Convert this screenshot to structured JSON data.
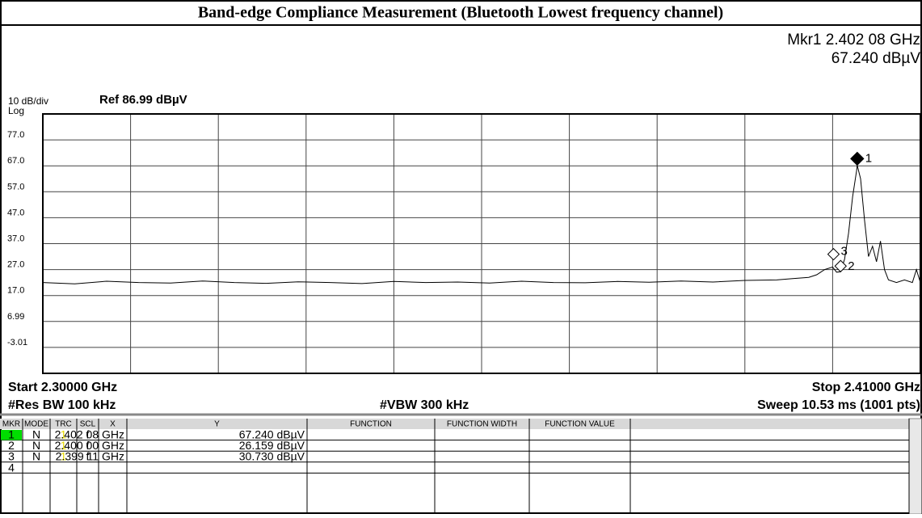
{
  "header": {
    "title": "Band-edge Compliance Measurement (Bluetooth Lowest frequency channel)"
  },
  "chart_data": {
    "type": "line",
    "marker_readout": [
      "Mkr1 2.402 08 GHz",
      "67.240 dBµV"
    ],
    "scale_label": "10 dB/div",
    "ref_label": "Ref 86.99 dBµV",
    "scale_type": "Log",
    "start_label": "Start 2.30000 GHz",
    "stop_label": "Stop 2.41000 GHz",
    "rbw_label": "#Res BW 100 kHz",
    "vbw_label": "#VBW 300 kHz",
    "sweep_label": "Sweep  10.53 ms (1001 pts)",
    "xlim": [
      2.3,
      2.41
    ],
    "ylim": [
      -13.01,
      86.99
    ],
    "yticks": [
      {
        "value": 76.99,
        "label": "77.0"
      },
      {
        "value": 66.99,
        "label": "67.0"
      },
      {
        "value": 56.99,
        "label": "57.0"
      },
      {
        "value": 46.99,
        "label": "47.0"
      },
      {
        "value": 36.99,
        "label": "37.0"
      },
      {
        "value": 26.99,
        "label": "27.0"
      },
      {
        "value": 16.99,
        "label": "17.0"
      },
      6.99,
      -3.01
    ],
    "grid": true,
    "color": "#000000",
    "x": [
      2.3,
      2.304,
      2.308,
      2.312,
      2.316,
      2.32,
      2.324,
      2.328,
      2.332,
      2.336,
      2.34,
      2.344,
      2.348,
      2.352,
      2.356,
      2.36,
      2.364,
      2.368,
      2.372,
      2.376,
      2.38,
      2.384,
      2.388,
      2.392,
      2.394,
      2.396,
      2.397,
      2.398,
      2.399,
      2.3995,
      2.4,
      2.4005,
      2.401,
      2.4015,
      2.402,
      2.40208,
      2.4025,
      2.403,
      2.4035,
      2.404,
      2.4045,
      2.405,
      2.4055,
      2.406,
      2.407,
      2.408,
      2.409,
      2.4095,
      2.41
    ],
    "values": [
      22,
      21.5,
      22.5,
      22,
      21.8,
      22.6,
      22,
      21.7,
      22.3,
      22,
      21.6,
      22.4,
      22,
      22.2,
      21.8,
      22.5,
      22,
      21.9,
      22.4,
      22.1,
      22.6,
      22.2,
      22.8,
      23,
      23.5,
      24,
      25,
      27,
      28,
      26,
      26.159,
      31,
      41,
      55,
      65,
      67.24,
      62,
      46,
      32,
      36,
      30,
      38,
      27,
      23,
      22,
      23,
      22,
      27,
      22
    ],
    "markers": [
      {
        "label": "1",
        "x": 2.40208,
        "y": 67.24
      },
      {
        "label": "2",
        "x": 2.4,
        "y": 26.159
      },
      {
        "label": "3",
        "x": 2.39911,
        "y": 30.73
      }
    ]
  },
  "table": {
    "headers": [
      "MKR",
      "MODE",
      "TRC",
      "SCL",
      "X",
      "Y",
      "FUNCTION",
      "FUNCTION WIDTH",
      "FUNCTION VALUE"
    ],
    "rows": [
      [
        "1",
        "N",
        "1",
        "f",
        "2.402 08 GHz",
        "67.240 dBµV"
      ],
      [
        "2",
        "N",
        "1",
        "f",
        "2.400 00 GHz",
        "26.159 dBµV"
      ],
      [
        "3",
        "N",
        "1",
        "f",
        "2.399 11 GHz",
        "30.730 dBµV"
      ],
      [
        "4"
      ]
    ]
  }
}
